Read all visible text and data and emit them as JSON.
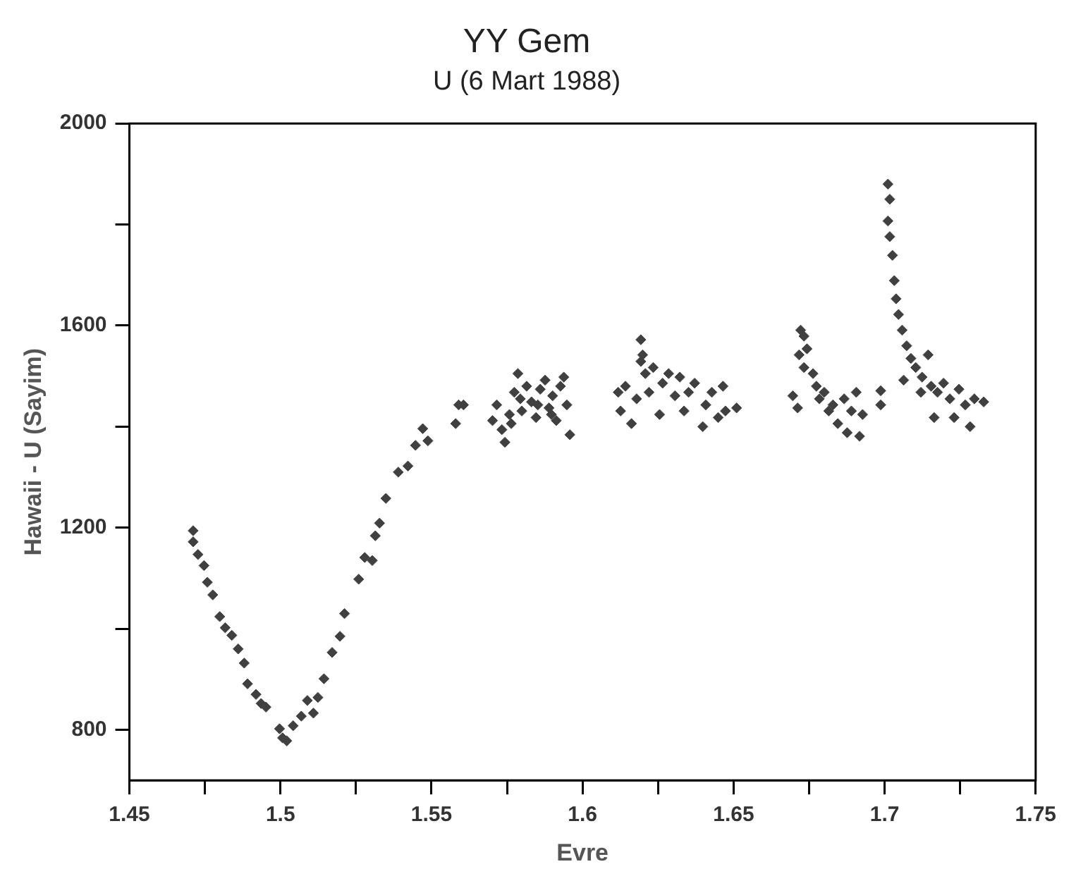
{
  "chart_data": {
    "type": "scatter",
    "title": "YY Gem",
    "subtitle": "U (6 Mart 1988)",
    "xlabel": "Evre",
    "ylabel": "Hawaii - U (Sayim)",
    "marker": "diamond",
    "grid": false,
    "legend": false,
    "xlim": [
      1.45,
      1.75
    ],
    "ylim": [
      700,
      2000
    ],
    "xticks": [
      1.45,
      {
        "value": 1.475,
        "label": null
      },
      1.5,
      {
        "value": 1.525,
        "label": null
      },
      1.55,
      {
        "value": 1.575,
        "label": null
      },
      1.6,
      {
        "value": 1.625,
        "label": null
      },
      1.65,
      {
        "value": 1.675,
        "label": null
      },
      1.7,
      {
        "value": 1.725,
        "label": null
      },
      1.75
    ],
    "yticks": [
      800,
      {
        "value": 1000,
        "label": null
      },
      1200,
      {
        "value": 1400,
        "label": null
      },
      1600,
      {
        "value": 1800,
        "label": null
      },
      2000
    ],
    "series": [
      {
        "color": "#404040",
        "x": [
          1.4711,
          1.4711,
          1.4727,
          1.4747,
          1.4758,
          1.4776,
          1.4799,
          1.4817,
          1.4839,
          1.486,
          1.488,
          1.4891,
          1.4919,
          1.4936,
          1.4952,
          1.4997,
          1.5007,
          1.5021,
          1.5042,
          1.5069,
          1.5089,
          1.5109,
          1.5124,
          1.5144,
          1.5171,
          1.5197,
          1.5212,
          1.5259,
          1.5279,
          1.5304,
          1.5314,
          1.5328,
          1.5349,
          1.539,
          1.5422,
          1.5447,
          1.5471,
          1.5488,
          1.558,
          1.559,
          1.5606,
          1.5702,
          1.5716,
          1.5733,
          1.5743,
          1.5758,
          1.5774,
          1.5786,
          1.5799,
          1.5815,
          1.5831,
          1.5846,
          1.586,
          1.5876,
          1.5889,
          1.5901,
          1.5913,
          1.5927,
          1.5938,
          1.5948,
          1.5958,
          1.5794,
          1.5852,
          1.5897,
          1.5764,
          1.6118,
          1.6126,
          1.6142,
          1.6162,
          1.6179,
          1.6193,
          1.6199,
          1.6208,
          1.622,
          1.6234,
          1.6255,
          1.6265,
          1.6285,
          1.6306,
          1.6322,
          1.6336,
          1.6351,
          1.6371,
          1.6398,
          1.6408,
          1.6428,
          1.6449,
          1.6465,
          1.6473,
          1.651,
          1.6193,
          1.6696,
          1.6712,
          1.6722,
          1.6733,
          1.6743,
          1.6733,
          1.6763,
          1.6774,
          1.6784,
          1.68,
          1.6815,
          1.6829,
          1.6845,
          1.6866,
          1.6876,
          1.689,
          1.6906,
          1.6917,
          1.6927,
          1.6717,
          1.6987,
          1.6987,
          1.7011,
          1.7017,
          1.7011,
          1.7017,
          1.7026,
          1.7032,
          1.7038,
          1.7046,
          1.7058,
          1.7073,
          1.7087,
          1.7103,
          1.7124,
          1.7144,
          1.7154,
          1.7175,
          1.7164,
          1.7195,
          1.7216,
          1.723,
          1.7246,
          1.7267,
          1.7283,
          1.7297,
          1.7328,
          1.712,
          1.7063
        ],
        "values": [
          1194,
          1172,
          1147,
          1125,
          1092,
          1067,
          1024,
          1002,
          987,
          960,
          932,
          891,
          870,
          852,
          845,
          802,
          784,
          778,
          808,
          827,
          858,
          833,
          864,
          901,
          953,
          985,
          1030,
          1098,
          1141,
          1135,
          1184,
          1209,
          1258,
          1310,
          1322,
          1363,
          1396,
          1372,
          1406,
          1443,
          1443,
          1412,
          1443,
          1394,
          1369,
          1424,
          1468,
          1505,
          1431,
          1480,
          1449,
          1418,
          1474,
          1492,
          1437,
          1461,
          1412,
          1480,
          1498,
          1443,
          1384,
          1455,
          1443,
          1424,
          1406,
          1468,
          1431,
          1480,
          1406,
          1455,
          1572,
          1542,
          1505,
          1468,
          1517,
          1424,
          1486,
          1505,
          1461,
          1498,
          1431,
          1468,
          1486,
          1400,
          1443,
          1468,
          1418,
          1480,
          1431,
          1437,
          1529,
          1461,
          1437,
          1591,
          1579,
          1554,
          1517,
          1505,
          1480,
          1455,
          1468,
          1431,
          1443,
          1406,
          1455,
          1388,
          1431,
          1468,
          1381,
          1424,
          1542,
          1471,
          1443,
          1880,
          1850,
          1807,
          1776,
          1739,
          1689,
          1653,
          1622,
          1591,
          1560,
          1535,
          1517,
          1498,
          1542,
          1480,
          1468,
          1418,
          1486,
          1455,
          1418,
          1474,
          1443,
          1400,
          1455,
          1449,
          1468,
          1492
        ]
      }
    ]
  }
}
